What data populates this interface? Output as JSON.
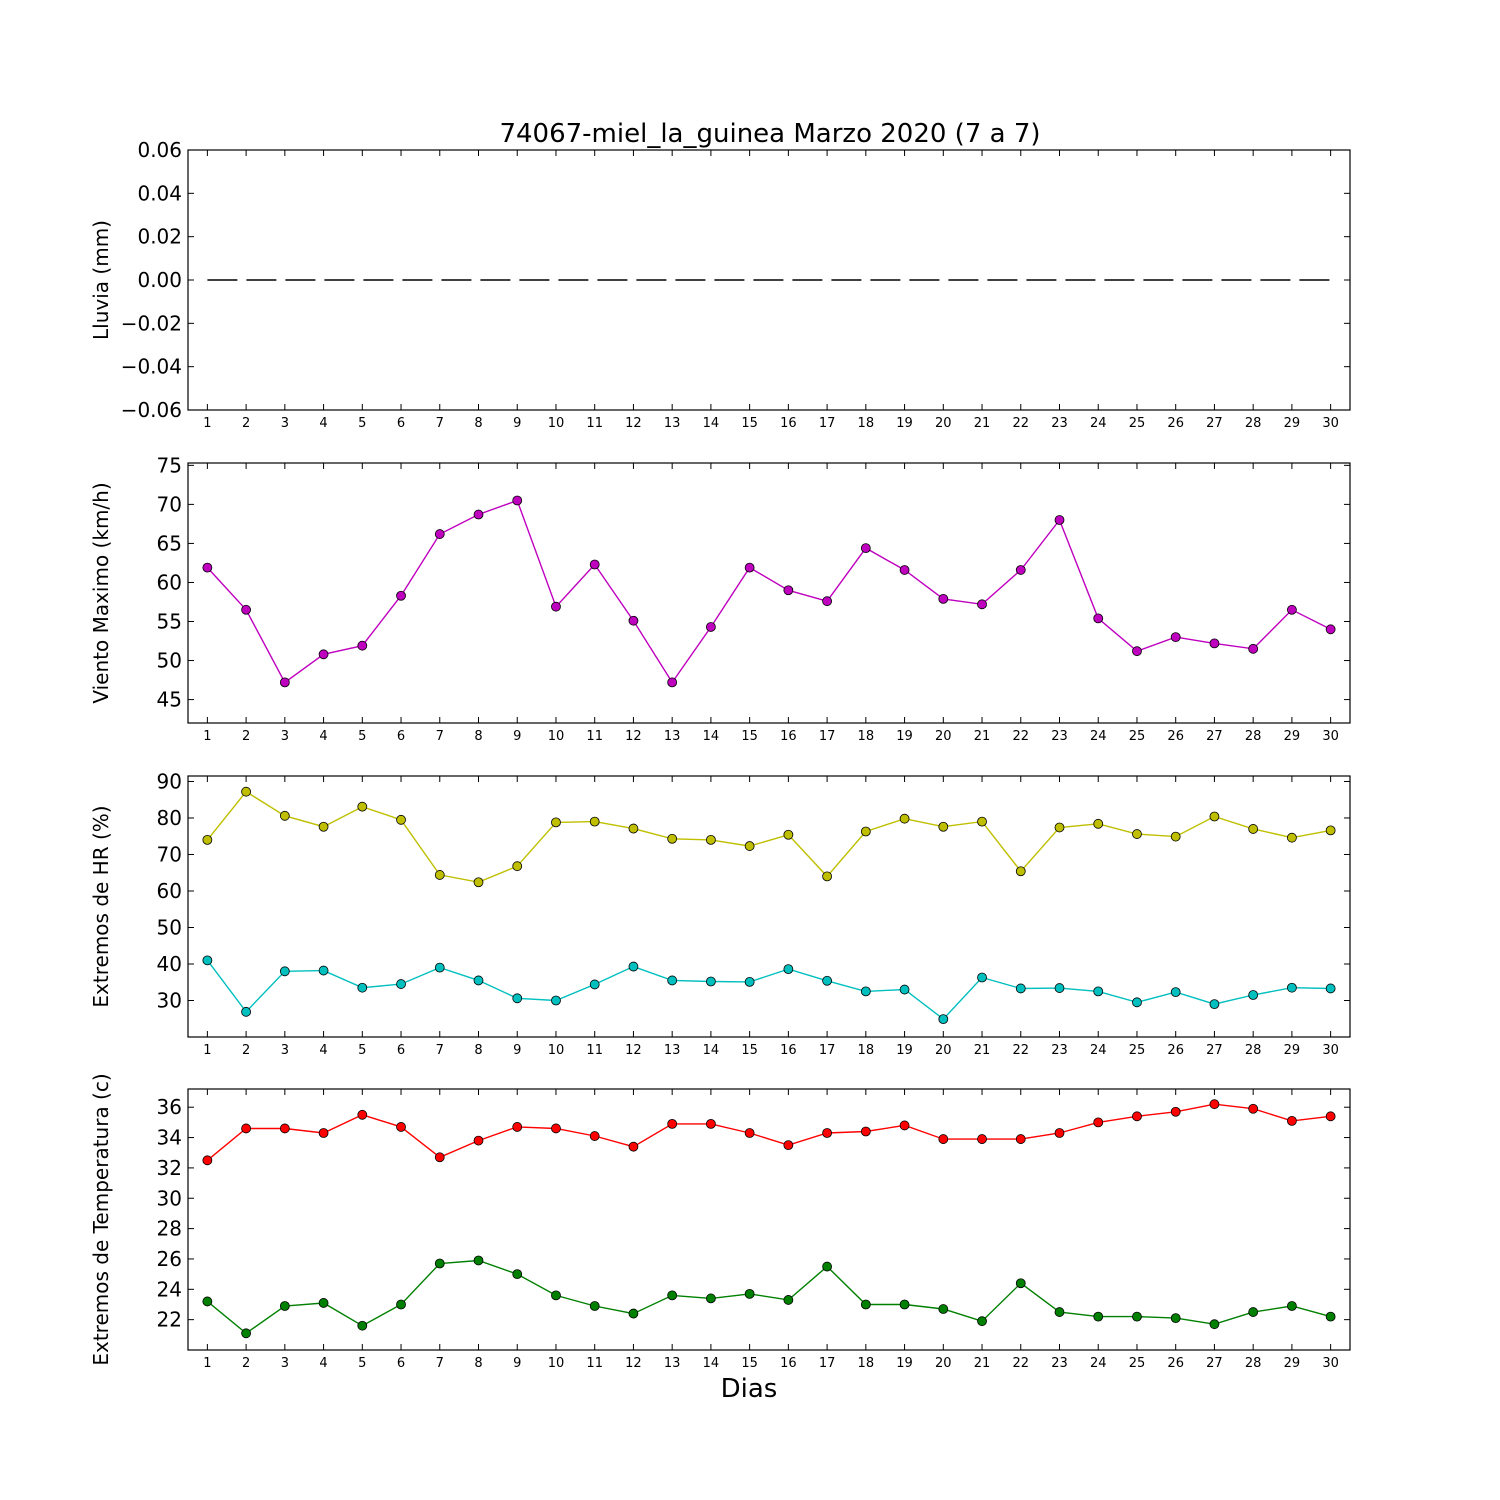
{
  "title": "74067-miel_la_guinea Marzo 2020  (7 a 7)",
  "chart_data": [
    {
      "type": "line",
      "ylabel": "Lluvia (mm)",
      "ylim": [
        -0.06,
        0.06
      ],
      "yticks": [
        "0.06",
        "0.04",
        "0.02",
        "0.00",
        "−0.02",
        "−0.04",
        "−0.06"
      ],
      "ytick_values": [
        0.06,
        0.04,
        0.02,
        0.0,
        -0.02,
        -0.04,
        -0.06
      ],
      "x": [
        1,
        2,
        3,
        4,
        5,
        6,
        7,
        8,
        9,
        10,
        11,
        12,
        13,
        14,
        15,
        16,
        17,
        18,
        19,
        20,
        21,
        22,
        23,
        24,
        25,
        26,
        27,
        28,
        29,
        30
      ],
      "series": [
        {
          "color": "#000000",
          "style": "dashed",
          "values": [
            0,
            0,
            0,
            0,
            0,
            0,
            0,
            0,
            0,
            0,
            0,
            0,
            0,
            0,
            0,
            0,
            0,
            0,
            0,
            0,
            0,
            0,
            0,
            0,
            0,
            0,
            0,
            0,
            0,
            0
          ]
        }
      ]
    },
    {
      "type": "line",
      "ylabel": "Viento Maximo (km/h)",
      "ylim": [
        42,
        75.3
      ],
      "yticks": [
        "75",
        "70",
        "65",
        "60",
        "55",
        "50",
        "45"
      ],
      "ytick_values": [
        75,
        70,
        65,
        60,
        55,
        50,
        45
      ],
      "x": [
        1,
        2,
        3,
        4,
        5,
        6,
        7,
        8,
        9,
        10,
        11,
        12,
        13,
        14,
        15,
        16,
        17,
        18,
        19,
        20,
        21,
        22,
        23,
        24,
        25,
        26,
        27,
        28,
        29,
        30
      ],
      "series": [
        {
          "color": "#bf00bf",
          "style": "solid",
          "values": [
            61.9,
            56.5,
            47.2,
            50.8,
            51.9,
            58.3,
            66.2,
            68.7,
            70.5,
            56.9,
            62.3,
            55.1,
            47.2,
            54.3,
            61.9,
            59.0,
            57.6,
            64.4,
            61.6,
            57.9,
            57.2,
            61.6,
            68.0,
            55.4,
            51.2,
            53.0,
            52.2,
            51.5,
            56.5,
            54.0
          ]
        }
      ]
    },
    {
      "type": "line",
      "ylabel": "Extremos de HR (%)",
      "ylim": [
        20,
        91.5
      ],
      "yticks": [
        "90",
        "80",
        "70",
        "60",
        "50",
        "40",
        "30"
      ],
      "ytick_values": [
        90,
        80,
        70,
        60,
        50,
        40,
        30
      ],
      "x": [
        1,
        2,
        3,
        4,
        5,
        6,
        7,
        8,
        9,
        10,
        11,
        12,
        13,
        14,
        15,
        16,
        17,
        18,
        19,
        20,
        21,
        22,
        23,
        24,
        25,
        26,
        27,
        28,
        29,
        30
      ],
      "series": [
        {
          "color": "#bfbf00",
          "style": "solid",
          "values": [
            74.0,
            87.2,
            80.6,
            77.6,
            83.1,
            79.5,
            64.4,
            62.4,
            66.8,
            78.8,
            79.0,
            77.1,
            74.3,
            74.0,
            72.3,
            75.4,
            64.0,
            76.3,
            79.8,
            77.6,
            79.0,
            65.4,
            77.4,
            78.4,
            75.6,
            74.9,
            80.4,
            77.0,
            74.6,
            76.6
          ]
        },
        {
          "color": "#00bfbf",
          "style": "solid",
          "values": [
            41.0,
            26.9,
            38.0,
            38.2,
            33.5,
            34.5,
            39.0,
            35.5,
            30.6,
            30.0,
            34.4,
            39.3,
            35.5,
            35.2,
            35.1,
            38.6,
            35.4,
            32.5,
            33.0,
            24.9,
            36.3,
            33.3,
            33.4,
            32.5,
            29.5,
            32.3,
            29.0,
            31.5,
            33.5,
            33.3
          ]
        }
      ]
    },
    {
      "type": "line",
      "ylabel": "Extremos de Temperatura (c)",
      "xlabel": "Dias",
      "ylim": [
        20,
        37.2
      ],
      "yticks": [
        "36",
        "34",
        "32",
        "30",
        "28",
        "26",
        "24",
        "22"
      ],
      "ytick_values": [
        36,
        34,
        32,
        30,
        28,
        26,
        24,
        22
      ],
      "x": [
        1,
        2,
        3,
        4,
        5,
        6,
        7,
        8,
        9,
        10,
        11,
        12,
        13,
        14,
        15,
        16,
        17,
        18,
        19,
        20,
        21,
        22,
        23,
        24,
        25,
        26,
        27,
        28,
        29,
        30
      ],
      "series": [
        {
          "color": "#ff0000",
          "style": "solid",
          "values": [
            32.5,
            34.6,
            34.6,
            34.3,
            35.5,
            34.7,
            32.7,
            33.8,
            34.7,
            34.6,
            34.1,
            33.4,
            34.9,
            34.9,
            34.3,
            33.5,
            34.3,
            34.4,
            34.8,
            33.9,
            33.9,
            33.9,
            34.3,
            35.0,
            35.4,
            35.7,
            36.2,
            35.9,
            35.1,
            35.4
          ]
        },
        {
          "color": "#008000",
          "style": "solid",
          "values": [
            23.2,
            21.1,
            22.9,
            23.1,
            21.6,
            23.0,
            25.7,
            25.9,
            25.0,
            23.6,
            22.9,
            22.4,
            23.6,
            23.4,
            23.7,
            23.3,
            25.5,
            23.0,
            23.0,
            22.7,
            21.9,
            24.4,
            22.5,
            22.2,
            22.2,
            22.1,
            21.7,
            22.5,
            22.9,
            22.2
          ]
        }
      ]
    }
  ]
}
